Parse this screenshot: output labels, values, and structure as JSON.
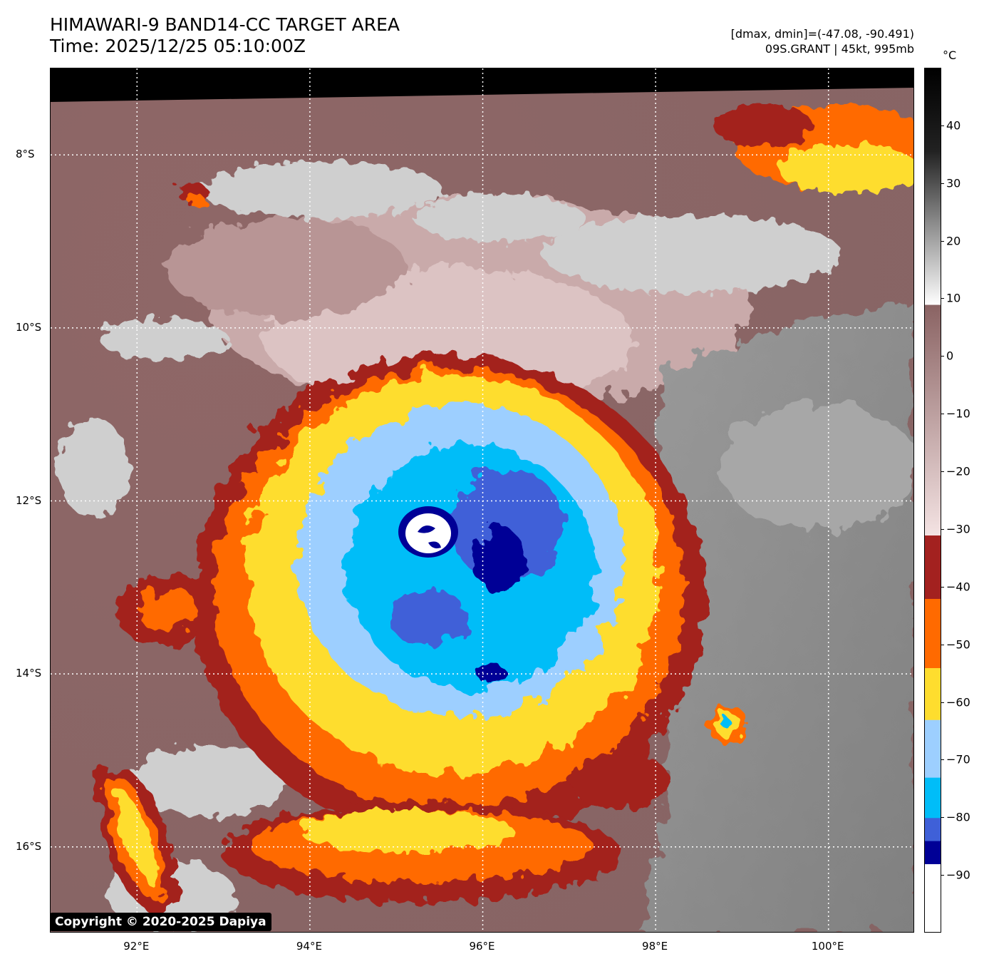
{
  "header": {
    "title_line1": "HIMAWARI-9 BAND14-CC TARGET AREA",
    "title_line2": "Time: 2025/12/25 05:10:00Z",
    "info_line1": "[dmax, dmin]=(-47.08, -90.491)",
    "info_line2": "09S.GRANT | 45kt, 995mb"
  },
  "copyright": "Copyright © 2020-2025 Dapiya",
  "map": {
    "lon_labels": [
      "92°E",
      "94°E",
      "96°E",
      "98°E",
      "100°E"
    ],
    "lat_labels": [
      "8°S",
      "10°S",
      "12°S",
      "14°S",
      "16°S"
    ],
    "lon_values": [
      92,
      94,
      96,
      98,
      100
    ],
    "lat_values": [
      -8,
      -10,
      -12,
      -14,
      -16
    ],
    "lon_range": [
      91,
      101
    ],
    "lat_range": [
      -7,
      -17
    ],
    "gridlines": true
  },
  "colorbar": {
    "unit": "°C",
    "tick_labels": [
      "40",
      "30",
      "20",
      "10",
      "0",
      "−10",
      "−20",
      "−30",
      "−40",
      "−50",
      "−60",
      "−70",
      "−80",
      "−90"
    ],
    "tick_values": [
      40,
      30,
      20,
      10,
      0,
      -10,
      -20,
      -30,
      -40,
      -50,
      -60,
      -70,
      -80,
      -90
    ],
    "range": [
      -100,
      50
    ],
    "segments": [
      {
        "from": 50,
        "to": 9,
        "color_top": "#000000",
        "color_bottom": "#ffffff"
      },
      {
        "from": 9,
        "to": -31,
        "color_top": "#9b6a6a",
        "color_bottom": "#f2dede"
      },
      {
        "from": -31,
        "to": -42,
        "color": "#a3211f"
      },
      {
        "from": -42,
        "to": -54,
        "color": "#ff6a00"
      },
      {
        "from": -54,
        "to": -63,
        "color": "#fedd2e"
      },
      {
        "from": -63,
        "to": -73,
        "color": "#9dcfff"
      },
      {
        "from": -73,
        "to": -80,
        "color": "#00bdf8"
      },
      {
        "from": -80,
        "to": -84,
        "color": "#3f60d8"
      },
      {
        "from": -84,
        "to": -88,
        "color": "#000096"
      },
      {
        "from": -88,
        "to": -100,
        "color": "#ffffff"
      }
    ]
  }
}
